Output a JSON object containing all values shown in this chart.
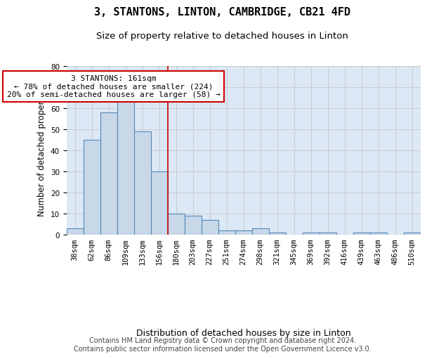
{
  "title": "3, STANTONS, LINTON, CAMBRIDGE, CB21 4FD",
  "subtitle": "Size of property relative to detached houses in Linton",
  "xlabel": "Distribution of detached houses by size in Linton",
  "ylabel": "Number of detached properties",
  "bin_labels": [
    "38sqm",
    "62sqm",
    "86sqm",
    "109sqm",
    "133sqm",
    "156sqm",
    "180sqm",
    "203sqm",
    "227sqm",
    "251sqm",
    "274sqm",
    "298sqm",
    "321sqm",
    "345sqm",
    "369sqm",
    "392sqm",
    "416sqm",
    "439sqm",
    "463sqm",
    "486sqm",
    "510sqm"
  ],
  "bar_values": [
    3,
    45,
    58,
    66,
    49,
    30,
    10,
    9,
    7,
    2,
    2,
    3,
    1,
    0,
    1,
    1,
    0,
    1,
    1,
    0,
    1
  ],
  "bar_color": "#c8d8e8",
  "bar_edgecolor": "#5588bb",
  "vline_x": 5.5,
  "vline_color": "#cc0000",
  "annotation_text": "3 STANTONS: 161sqm\n← 78% of detached houses are smaller (224)\n20% of semi-detached houses are larger (58) →",
  "annotation_box_color": "#cc0000",
  "annotation_fontsize": 8,
  "ylim": [
    0,
    80
  ],
  "yticks": [
    0,
    10,
    20,
    30,
    40,
    50,
    60,
    70,
    80
  ],
  "grid_color": "#cccccc",
  "background_color": "#dce8f5",
  "footer_text": "Contains HM Land Registry data © Crown copyright and database right 2024.\nContains public sector information licensed under the Open Government Licence v3.0.",
  "title_fontsize": 11,
  "subtitle_fontsize": 9.5,
  "xlabel_fontsize": 9,
  "ylabel_fontsize": 8.5,
  "tick_fontsize": 7.5,
  "footer_fontsize": 7
}
